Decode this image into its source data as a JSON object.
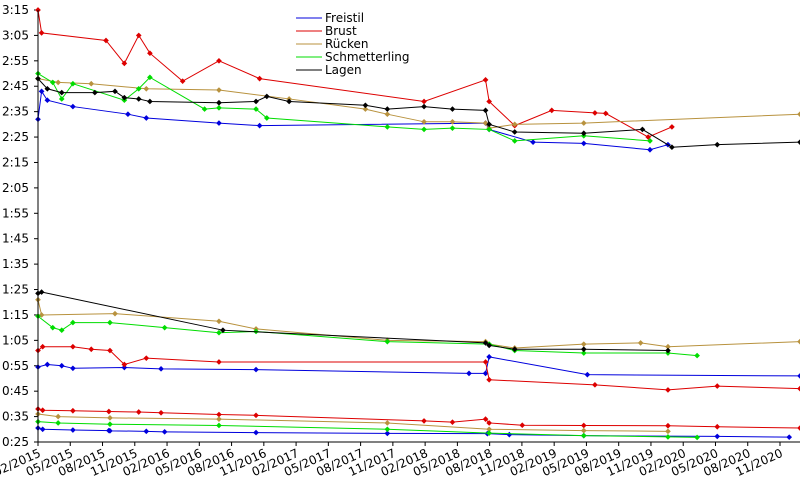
{
  "chart_data": {
    "type": "line",
    "ylim_seconds": [
      145,
      195
    ],
    "xlim": [
      "2015-03-15",
      "2020-12-31"
    ],
    "y_ticks": [
      "3:15",
      "3:05",
      "2:55",
      "2:45",
      "2:35",
      "2:25",
      "2:15",
      "2:05",
      "1:55",
      "1:45",
      "1:35",
      "1:25",
      "1:15",
      "1:05",
      "0:55",
      "0:45",
      "0:35",
      "0:25"
    ],
    "x_ticks": [
      "02/2015",
      "05/2015",
      "08/2015",
      "11/2015",
      "02/2016",
      "05/2016",
      "08/2016",
      "11/2016",
      "02/2017",
      "05/2017",
      "08/2017",
      "11/2017",
      "02/2018",
      "05/2018",
      "08/2018",
      "11/2018",
      "02/2019",
      "05/2019",
      "08/2019",
      "11/2019",
      "02/2020",
      "05/2020",
      "08/2020",
      "11/2020"
    ],
    "legend": {
      "placement": "top-center",
      "entries": [
        "Freistil",
        "Brust",
        "Rücken",
        "Schmetterling",
        "Lagen"
      ]
    },
    "series": [
      {
        "name": "Freistil",
        "color": "#0000dd",
        "lines": [
          {
            "points": [
              [
                "2015-03-15",
                152.0
              ],
              [
                "2015-03-25",
                163.0
              ],
              [
                "2015-04-10",
                159.5
              ],
              [
                "2015-06-20",
                157.0
              ],
              [
                "2015-11-20",
                154.0
              ],
              [
                "2016-01-10",
                152.5
              ],
              [
                "2016-07-30",
                150.5
              ],
              [
                "2016-11-20",
                149.5
              ],
              [
                "2018-08-10",
                150.5
              ],
              [
                "2018-08-20",
                148.0
              ],
              [
                "2018-12-20",
                143.0
              ],
              [
                "2019-05-10",
                142.5
              ],
              [
                "2019-11-10",
                140.0
              ],
              [
                "2019-12-30",
                142.0
              ]
            ]
          },
          {
            "points": [
              [
                "2015-03-15",
                54.5
              ],
              [
                "2015-04-10",
                55.5
              ],
              [
                "2015-05-20",
                55.0
              ],
              [
                "2015-06-20",
                54.0
              ],
              [
                "2015-11-10",
                54.3
              ],
              [
                "2016-02-20",
                53.8
              ],
              [
                "2016-11-10",
                53.5
              ],
              [
                "2018-06-25",
                52.0
              ],
              [
                "2018-08-10",
                52.0
              ],
              [
                "2018-08-20",
                58.5
              ],
              [
                "2019-05-20",
                51.5
              ],
              [
                "2020-12-31",
                51.0
              ]
            ]
          },
          {
            "points": [
              [
                "2015-03-15",
                30.5
              ],
              [
                "2015-03-28",
                30.0
              ],
              [
                "2015-06-20",
                29.7
              ],
              [
                "2015-09-28",
                29.5
              ],
              [
                "2015-10-01",
                29.4
              ],
              [
                "2016-01-10",
                29.2
              ],
              [
                "2016-03-01",
                29.0
              ],
              [
                "2016-11-10",
                28.7
              ],
              [
                "2017-11-10",
                28.4
              ],
              [
                "2018-08-15",
                28.3
              ],
              [
                "2018-10-15",
                27.9
              ],
              [
                "2019-05-10",
                27.5
              ],
              [
                "2020-05-15",
                27.2
              ],
              [
                "2020-12-01",
                26.9
              ]
            ]
          }
        ]
      },
      {
        "name": "Brust",
        "color": "#dd0000",
        "lines": [
          {
            "points": [
              [
                "2015-03-15",
                195.0
              ],
              [
                "2015-03-25",
                186.0
              ],
              [
                "2015-09-20",
                183.0
              ],
              [
                "2015-11-10",
                174.0
              ],
              [
                "2015-12-20",
                185.0
              ],
              [
                "2016-01-20",
                178.0
              ],
              [
                "2016-04-20",
                167.0
              ],
              [
                "2016-07-30",
                175.0
              ],
              [
                "2016-11-20",
                168.0
              ],
              [
                "2018-02-20",
                159.0
              ],
              [
                "2018-08-10",
                167.5
              ],
              [
                "2018-08-20",
                159.0
              ],
              [
                "2018-10-30",
                149.5
              ],
              [
                "2019-02-10",
                155.5
              ],
              [
                "2019-06-10",
                154.5
              ],
              [
                "2019-07-10",
                154.3
              ],
              [
                "2019-11-05",
                145.0
              ],
              [
                "2020-01-10",
                149.0
              ]
            ]
          },
          {
            "points": [
              [
                "2015-03-15",
                61.0
              ],
              [
                "2015-03-28",
                62.5
              ],
              [
                "2015-06-20",
                62.5
              ],
              [
                "2015-08-10",
                61.5
              ],
              [
                "2015-10-01",
                61.0
              ],
              [
                "2015-11-10",
                55.5
              ],
              [
                "2016-01-10",
                58.0
              ],
              [
                "2016-07-30",
                56.5
              ],
              [
                "2018-08-10",
                56.5
              ],
              [
                "2018-08-20",
                49.5
              ],
              [
                "2019-06-10",
                47.5
              ],
              [
                "2019-12-30",
                45.5
              ],
              [
                "2020-05-15",
                47.0
              ],
              [
                "2020-12-31",
                46.0
              ]
            ]
          },
          {
            "points": [
              [
                "2015-03-15",
                38.0
              ],
              [
                "2015-03-28",
                37.5
              ],
              [
                "2015-06-20",
                37.3
              ],
              [
                "2015-09-28",
                37.0
              ],
              [
                "2015-12-20",
                36.8
              ],
              [
                "2016-02-20",
                36.5
              ],
              [
                "2016-07-30",
                35.8
              ],
              [
                "2016-11-10",
                35.5
              ],
              [
                "2018-02-20",
                33.3
              ],
              [
                "2018-05-10",
                32.8
              ],
              [
                "2018-08-10",
                34.0
              ],
              [
                "2018-08-20",
                32.5
              ],
              [
                "2018-11-20",
                31.6
              ],
              [
                "2019-05-10",
                31.5
              ],
              [
                "2019-12-30",
                31.4
              ],
              [
                "2020-05-15",
                31.0
              ],
              [
                "2020-12-31",
                30.5
              ]
            ]
          }
        ]
      },
      {
        "name": "Rücken",
        "color": "#b8923e",
        "lines": [
          {
            "points": [
              [
                "2015-03-15",
                168.0
              ],
              [
                "2015-05-10",
                166.5
              ],
              [
                "2015-08-10",
                166.0
              ],
              [
                "2016-01-10",
                164.0
              ],
              [
                "2016-07-30",
                163.5
              ],
              [
                "2017-02-10",
                160.0
              ],
              [
                "2017-09-10",
                156.0
              ],
              [
                "2017-11-10",
                154.0
              ],
              [
                "2018-02-20",
                151.0
              ],
              [
                "2018-05-10",
                151.0
              ],
              [
                "2018-08-10",
                150.5
              ],
              [
                "2018-08-20",
                148.5
              ],
              [
                "2018-10-30",
                150.0
              ],
              [
                "2019-05-10",
                150.5
              ],
              [
                "2020-12-31",
                154.0
              ]
            ]
          },
          {
            "points": [
              [
                "2015-03-15",
                81.0
              ],
              [
                "2015-03-25",
                75.0
              ],
              [
                "2015-10-15",
                75.5
              ],
              [
                "2016-07-30",
                72.5
              ],
              [
                "2016-11-10",
                69.5
              ],
              [
                "2017-11-10",
                65.0
              ],
              [
                "2018-08-10",
                64.5
              ],
              [
                "2018-08-20",
                63.5
              ],
              [
                "2018-10-30",
                62.0
              ],
              [
                "2019-05-10",
                63.5
              ],
              [
                "2019-10-15",
                64.0
              ],
              [
                "2019-12-30",
                62.5
              ],
              [
                "2020-12-31",
                64.5
              ]
            ]
          },
          {
            "points": [
              [
                "2015-03-15",
                36.0
              ],
              [
                "2015-05-10",
                35.0
              ],
              [
                "2015-10-01",
                34.5
              ],
              [
                "2016-07-30",
                34.0
              ],
              [
                "2017-11-10",
                32.5
              ],
              [
                "2018-08-20",
                30.0
              ],
              [
                "2019-05-10",
                29.5
              ],
              [
                "2019-12-30",
                29.2
              ]
            ]
          }
        ]
      },
      {
        "name": "Schmetterling",
        "color": "#00dd00",
        "lines": [
          {
            "points": [
              [
                "2015-03-15",
                170.0
              ],
              [
                "2015-04-25",
                166.5
              ],
              [
                "2015-05-20",
                160.0
              ],
              [
                "2015-06-20",
                166.0
              ],
              [
                "2015-11-10",
                159.5
              ],
              [
                "2015-12-20",
                164.0
              ],
              [
                "2016-01-20",
                168.5
              ],
              [
                "2016-06-20",
                156.0
              ],
              [
                "2016-07-30",
                156.5
              ],
              [
                "2016-11-10",
                156.0
              ],
              [
                "2016-12-10",
                152.5
              ],
              [
                "2017-11-10",
                149.0
              ],
              [
                "2018-02-20",
                148.0
              ],
              [
                "2018-05-10",
                148.5
              ],
              [
                "2018-08-20",
                148.0
              ],
              [
                "2018-10-30",
                143.5
              ],
              [
                "2019-05-10",
                145.5
              ],
              [
                "2019-11-10",
                143.5
              ]
            ]
          },
          {
            "points": [
              [
                "2015-03-15",
                74.5
              ],
              [
                "2015-04-25",
                70.0
              ],
              [
                "2015-05-20",
                69.0
              ],
              [
                "2015-06-20",
                72.0
              ],
              [
                "2015-10-01",
                72.0
              ],
              [
                "2016-03-01",
                70.0
              ],
              [
                "2016-07-30",
                68.0
              ],
              [
                "2016-11-10",
                68.5
              ],
              [
                "2017-11-10",
                64.5
              ],
              [
                "2018-08-20",
                63.5
              ],
              [
                "2018-10-30",
                61.0
              ],
              [
                "2019-05-10",
                60.0
              ],
              [
                "2019-12-30",
                60.0
              ],
              [
                "2020-03-20",
                59.0
              ]
            ]
          },
          {
            "points": [
              [
                "2015-03-15",
                33.0
              ],
              [
                "2015-05-10",
                32.5
              ],
              [
                "2015-10-01",
                32.0
              ],
              [
                "2016-07-30",
                31.5
              ],
              [
                "2017-11-10",
                30.0
              ],
              [
                "2018-08-20",
                28.5
              ],
              [
                "2019-05-10",
                27.5
              ],
              [
                "2019-12-30",
                27.0
              ],
              [
                "2020-03-20",
                26.8
              ]
            ]
          }
        ]
      },
      {
        "name": "Lagen",
        "color": "#000000",
        "lines": [
          {
            "points": [
              [
                "2015-03-15",
                168.0
              ],
              [
                "2015-04-10",
                164.0
              ],
              [
                "2015-05-20",
                162.5
              ],
              [
                "2015-08-20",
                162.5
              ],
              [
                "2015-10-15",
                163.0
              ],
              [
                "2015-11-10",
                160.5
              ],
              [
                "2015-12-20",
                160.0
              ],
              [
                "2016-01-20",
                159.0
              ],
              [
                "2016-07-30",
                158.5
              ],
              [
                "2016-11-10",
                159.0
              ],
              [
                "2016-12-10",
                161.0
              ],
              [
                "2017-02-10",
                159.0
              ],
              [
                "2017-09-10",
                157.5
              ],
              [
                "2017-11-10",
                156.0
              ],
              [
                "2018-02-20",
                157.0
              ],
              [
                "2018-05-10",
                156.0
              ],
              [
                "2018-08-10",
                155.5
              ],
              [
                "2018-08-20",
                150.0
              ],
              [
                "2018-10-30",
                147.0
              ],
              [
                "2019-05-10",
                146.5
              ],
              [
                "2019-10-20",
                148.0
              ],
              [
                "2020-01-10",
                141.0
              ],
              [
                "2020-05-15",
                142.0
              ],
              [
                "2020-12-31",
                143.0
              ]
            ]
          },
          {
            "points": [
              [
                "2015-03-15",
                83.5
              ],
              [
                "2015-03-25",
                84.0
              ],
              [
                "2016-08-10",
                69.0
              ],
              [
                "2018-08-10",
                64.0
              ],
              [
                "2018-08-20",
                63.0
              ],
              [
                "2018-10-30",
                61.5
              ],
              [
                "2019-05-10",
                61.5
              ],
              [
                "2019-12-30",
                61.0
              ]
            ]
          }
        ]
      }
    ]
  }
}
